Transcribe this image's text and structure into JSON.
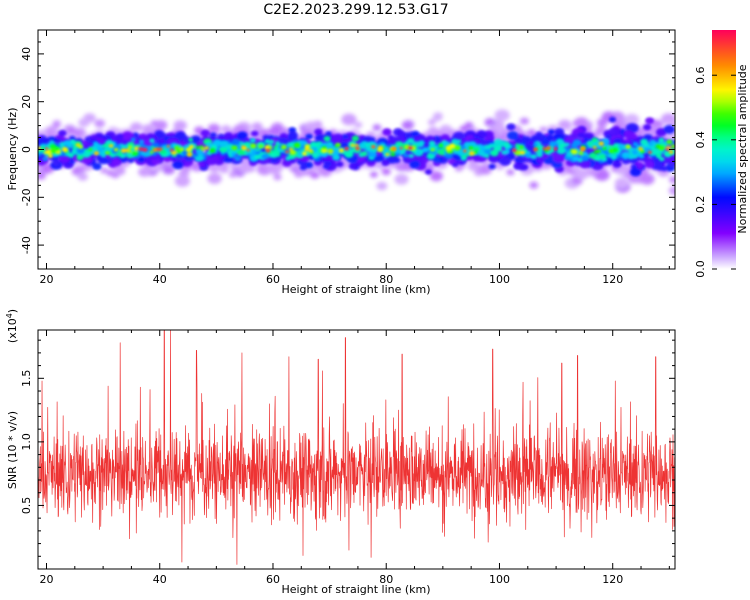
{
  "title": "C2E2.2023.299.12.53.G17",
  "chart_data": [
    {
      "type": "heatmap",
      "xlabel": "Height of straight line (km)",
      "ylabel": "Frequency (Hz)",
      "xlim": [
        18.5,
        131
      ],
      "ylim": [
        -50,
        50
      ],
      "xticks": [
        20,
        40,
        60,
        80,
        100,
        120
      ],
      "yticks": [
        -40,
        -20,
        0,
        20,
        40
      ],
      "colorbar": {
        "label": "Normalized spectral amplitude",
        "range": [
          0.0,
          0.74
        ],
        "ticks": [
          0.0,
          0.2,
          0.4,
          0.6
        ]
      },
      "band": {
        "center_frequency_hz": 0,
        "typical_half_width_hz": 7,
        "peak_normalized_amplitude": 0.74
      }
    },
    {
      "type": "line",
      "xlabel": "Height of straight line (km)",
      "ylabel": "SNR (10 * v/v)",
      "y_multiplier": "(x10",
      "y_multiplier_exp": "4",
      "xlim": [
        18.5,
        131
      ],
      "ylim": [
        0,
        1.88
      ],
      "xticks": [
        20,
        40,
        60,
        80,
        100,
        120
      ],
      "yticks": [
        0.5,
        1.0,
        1.5
      ],
      "ytick_labels": [
        "0.5",
        "1.0",
        "1.5"
      ],
      "series": [
        {
          "typical_value": 0.75,
          "peak_value": 1.88,
          "peaks": [
            {
              "x": 33.0,
              "y": 1.78
            },
            {
              "x": 40.8,
              "y": 1.88
            },
            {
              "x": 41.9,
              "y": 1.88
            },
            {
              "x": 46.5,
              "y": 1.72
            },
            {
              "x": 54.5,
              "y": 1.7
            },
            {
              "x": 62.8,
              "y": 1.67
            },
            {
              "x": 68.0,
              "y": 1.65
            },
            {
              "x": 72.8,
              "y": 1.82
            },
            {
              "x": 82.8,
              "y": 1.69
            },
            {
              "x": 98.8,
              "y": 1.73
            },
            {
              "x": 111.0,
              "y": 1.62
            },
            {
              "x": 113.8,
              "y": 1.68
            },
            {
              "x": 127.6,
              "y": 1.67
            }
          ]
        }
      ]
    }
  ],
  "colors": {
    "line": "#ee3333",
    "axes": "#000000",
    "background": "#ffffff"
  }
}
